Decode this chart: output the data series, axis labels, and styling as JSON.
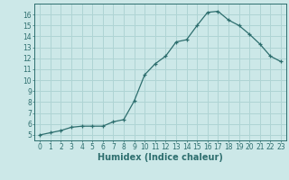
{
  "x": [
    0,
    1,
    2,
    3,
    4,
    5,
    6,
    7,
    8,
    9,
    10,
    11,
    12,
    13,
    14,
    15,
    16,
    17,
    18,
    19,
    20,
    21,
    22,
    23
  ],
  "y": [
    5.0,
    5.2,
    5.4,
    5.7,
    5.8,
    5.8,
    5.8,
    6.2,
    6.4,
    8.1,
    10.5,
    11.5,
    12.2,
    13.5,
    13.7,
    15.0,
    16.2,
    16.3,
    15.5,
    15.0,
    14.2,
    13.3,
    12.2,
    11.7
  ],
  "xlabel": "Humidex (Indice chaleur)",
  "ylim": [
    4.5,
    17.0
  ],
  "xlim": [
    -0.5,
    23.5
  ],
  "yticks": [
    5,
    6,
    7,
    8,
    9,
    10,
    11,
    12,
    13,
    14,
    15,
    16
  ],
  "xticks": [
    0,
    1,
    2,
    3,
    4,
    5,
    6,
    7,
    8,
    9,
    10,
    11,
    12,
    13,
    14,
    15,
    16,
    17,
    18,
    19,
    20,
    21,
    22,
    23
  ],
  "line_color": "#2d6e6e",
  "marker": "+",
  "bg_color": "#cce8e8",
  "grid_color": "#afd4d4",
  "axis_color": "#2d6e6e",
  "xlabel_fontsize": 7,
  "tick_fontsize": 5.5
}
